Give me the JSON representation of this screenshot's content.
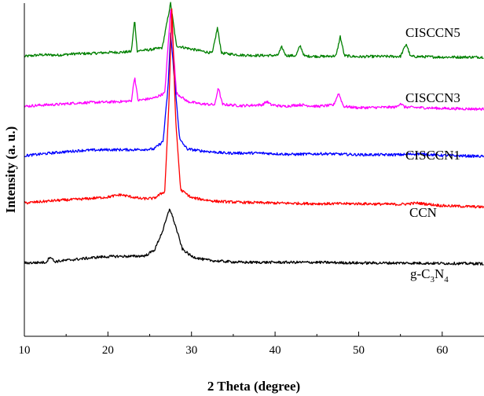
{
  "chart_data": {
    "type": "line",
    "title": "",
    "xlabel": "2 Theta (degree)",
    "ylabel": "Intensity (a. u.)",
    "xlim": [
      10,
      65
    ],
    "xticks": [
      10,
      20,
      30,
      40,
      50,
      60
    ],
    "yticks_shown": false,
    "grid": false,
    "legend": "labels placed next to each curve on the right side",
    "series": [
      {
        "name": "CISCCN5",
        "color": "#008000",
        "baseline": 0.84,
        "points": [
          [
            10,
            0.84
          ],
          [
            12,
            0.845
          ],
          [
            14,
            0.844
          ],
          [
            16,
            0.848
          ],
          [
            18,
            0.849
          ],
          [
            20,
            0.852
          ],
          [
            22,
            0.853
          ],
          [
            22.8,
            0.855
          ],
          [
            23.2,
            0.95
          ],
          [
            23.5,
            0.857
          ],
          [
            25,
            0.86
          ],
          [
            26.5,
            0.866
          ],
          [
            27.5,
            1.0
          ],
          [
            28.2,
            0.872
          ],
          [
            30,
            0.862
          ],
          [
            32.5,
            0.85
          ],
          [
            33.1,
            0.926
          ],
          [
            33.6,
            0.85
          ],
          [
            36,
            0.844
          ],
          [
            38,
            0.843
          ],
          [
            40.3,
            0.843
          ],
          [
            40.8,
            0.868
          ],
          [
            41.3,
            0.843
          ],
          [
            42.5,
            0.842
          ],
          [
            43,
            0.873
          ],
          [
            43.5,
            0.841
          ],
          [
            46,
            0.84
          ],
          [
            47.3,
            0.842
          ],
          [
            47.8,
            0.9
          ],
          [
            48.3,
            0.842
          ],
          [
            50,
            0.839
          ],
          [
            52,
            0.84
          ],
          [
            55,
            0.84
          ],
          [
            55.7,
            0.878
          ],
          [
            56.2,
            0.84
          ],
          [
            60,
            0.838
          ],
          [
            62,
            0.838
          ],
          [
            65,
            0.838
          ]
        ]
      },
      {
        "name": "CISCCN3",
        "color": "#ff00ff",
        "baseline": 0.69,
        "points": [
          [
            10,
            0.69
          ],
          [
            12,
            0.694
          ],
          [
            14,
            0.696
          ],
          [
            16,
            0.7
          ],
          [
            18,
            0.702
          ],
          [
            20,
            0.703
          ],
          [
            22.8,
            0.706
          ],
          [
            23.2,
            0.78
          ],
          [
            23.6,
            0.708
          ],
          [
            25.5,
            0.715
          ],
          [
            26.8,
            0.73
          ],
          [
            27.5,
            0.98
          ],
          [
            28.2,
            0.73
          ],
          [
            29.5,
            0.705
          ],
          [
            31,
            0.698
          ],
          [
            32.8,
            0.695
          ],
          [
            33.2,
            0.748
          ],
          [
            33.7,
            0.696
          ],
          [
            36,
            0.692
          ],
          [
            38.5,
            0.695
          ],
          [
            39,
            0.705
          ],
          [
            39.5,
            0.695
          ],
          [
            41,
            0.69
          ],
          [
            43,
            0.695
          ],
          [
            45,
            0.69
          ],
          [
            47,
            0.694
          ],
          [
            47.6,
            0.73
          ],
          [
            48.2,
            0.69
          ],
          [
            50,
            0.686
          ],
          [
            54.5,
            0.688
          ],
          [
            55,
            0.7
          ],
          [
            55.5,
            0.688
          ],
          [
            60,
            0.684
          ],
          [
            65,
            0.682
          ]
        ]
      },
      {
        "name": "CISCCN1",
        "color": "#0000ff",
        "baseline": 0.542,
        "points": [
          [
            10,
            0.542
          ],
          [
            14,
            0.552
          ],
          [
            17,
            0.558
          ],
          [
            20,
            0.56
          ],
          [
            23,
            0.56
          ],
          [
            25.5,
            0.562
          ],
          [
            26.6,
            0.585
          ],
          [
            27.2,
            0.75
          ],
          [
            27.5,
            0.91
          ],
          [
            28,
            0.76
          ],
          [
            28.6,
            0.59
          ],
          [
            29.5,
            0.562
          ],
          [
            31,
            0.557
          ],
          [
            34,
            0.55
          ],
          [
            38,
            0.55
          ],
          [
            42,
            0.546
          ],
          [
            46,
            0.548
          ],
          [
            50,
            0.545
          ],
          [
            55,
            0.545
          ],
          [
            57,
            0.548
          ],
          [
            60,
            0.543
          ],
          [
            65,
            0.54
          ]
        ]
      },
      {
        "name": "CCN",
        "color": "#ff0000",
        "baseline": 0.4,
        "points": [
          [
            10,
            0.4
          ],
          [
            14,
            0.408
          ],
          [
            17,
            0.412
          ],
          [
            20,
            0.418
          ],
          [
            21.5,
            0.425
          ],
          [
            22.5,
            0.42
          ],
          [
            24,
            0.413
          ],
          [
            25.5,
            0.414
          ],
          [
            26.8,
            0.435
          ],
          [
            27.3,
            0.7
          ],
          [
            27.65,
            0.99
          ],
          [
            28.1,
            0.65
          ],
          [
            28.7,
            0.44
          ],
          [
            30,
            0.416
          ],
          [
            31.5,
            0.41
          ],
          [
            33,
            0.405
          ],
          [
            36,
            0.402
          ],
          [
            40,
            0.4
          ],
          [
            45,
            0.398
          ],
          [
            50,
            0.398
          ],
          [
            55,
            0.396
          ],
          [
            57,
            0.4
          ],
          [
            60,
            0.392
          ],
          [
            65,
            0.388
          ]
        ]
      },
      {
        "name": "g-C3N4",
        "color": "#000000",
        "baseline": 0.22,
        "points": [
          [
            10,
            0.22
          ],
          [
            12.6,
            0.222
          ],
          [
            13.1,
            0.24
          ],
          [
            13.6,
            0.224
          ],
          [
            15,
            0.228
          ],
          [
            17,
            0.233
          ],
          [
            19,
            0.238
          ],
          [
            21,
            0.24
          ],
          [
            23,
            0.24
          ],
          [
            24.5,
            0.242
          ],
          [
            25.6,
            0.26
          ],
          [
            26.6,
            0.32
          ],
          [
            27.4,
            0.384
          ],
          [
            28.1,
            0.33
          ],
          [
            28.9,
            0.262
          ],
          [
            30,
            0.24
          ],
          [
            31.5,
            0.23
          ],
          [
            33,
            0.226
          ],
          [
            36,
            0.222
          ],
          [
            40,
            0.222
          ],
          [
            45,
            0.222
          ],
          [
            50,
            0.22
          ],
          [
            55,
            0.22
          ],
          [
            60,
            0.219
          ],
          [
            65,
            0.218
          ]
        ]
      }
    ],
    "curve_labels": [
      {
        "series": "CISCCN5",
        "text": "CISCCN5"
      },
      {
        "series": "CISCCN3",
        "text": "CISCCN3"
      },
      {
        "series": "CISCCN1",
        "text": "CISCCN1"
      },
      {
        "series": "CCN",
        "text": "CCN"
      },
      {
        "series": "g-C3N4",
        "prefix": "g-C",
        "sub1": "3",
        "mid": "N",
        "sub2": "4"
      }
    ]
  }
}
